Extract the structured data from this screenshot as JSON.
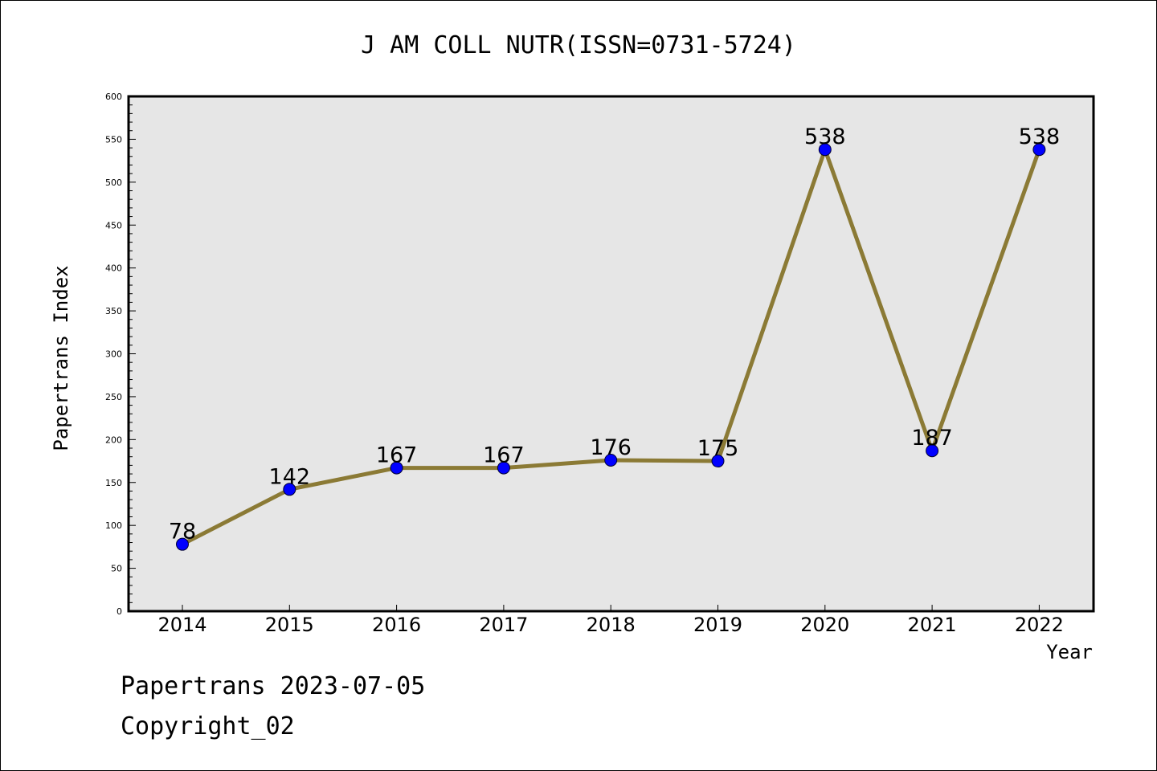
{
  "chart_data": {
    "type": "line",
    "title": "J AM COLL NUTR(ISSN=0731-5724)",
    "xlabel": "Year",
    "ylabel": "Papertrans Index",
    "categories": [
      "2014",
      "2015",
      "2016",
      "2017",
      "2018",
      "2019",
      "2020",
      "2021",
      "2022"
    ],
    "series": [
      {
        "values": [
          78,
          142,
          167,
          167,
          176,
          175,
          538,
          187,
          538
        ]
      }
    ],
    "data_labels": [
      "78",
      "142",
      "167",
      "167",
      "176",
      "175",
      "538",
      "187",
      "538"
    ],
    "ylim": [
      0,
      600
    ],
    "y_ticks": [
      "0",
      "50",
      "100",
      "150",
      "200",
      "250",
      "300",
      "350",
      "400",
      "450",
      "500",
      "550",
      "600"
    ],
    "grid": false,
    "line_color": "#8b7a35",
    "marker_color": "#0000ff",
    "plot_background": "#e6e6e6"
  },
  "footer": {
    "line1": "Papertrans 2023-07-05",
    "line2": "Copyright_02"
  }
}
